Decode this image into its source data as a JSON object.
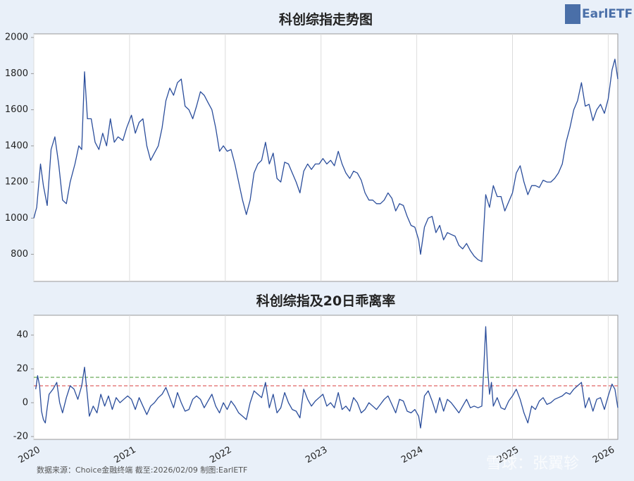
{
  "logo": "EarlETF",
  "footer": "数据来源：Choice金融终端 截至:2026/02/09 制图:EarlETF",
  "watermark": "雪球：张翼轸",
  "chart_data": [
    {
      "type": "line",
      "title": "科创综指走势图",
      "color": "#2a4d9b",
      "grid": "x",
      "xtick_labels": false,
      "xlim": [
        2020,
        2026.1
      ],
      "xticks": [
        2020,
        2021,
        2022,
        2023,
        2024,
        2025,
        2026
      ],
      "ylim": [
        650,
        2020
      ],
      "yticks": [
        800,
        1000,
        1200,
        1400,
        1600,
        1800,
        2000
      ],
      "x": [
        2020,
        2020.03,
        2020.07,
        2020.1,
        2020.14,
        2020.18,
        2020.22,
        2020.26,
        2020.3,
        2020.34,
        2020.38,
        2020.43,
        2020.47,
        2020.5,
        2020.53,
        2020.56,
        2020.6,
        2020.64,
        2020.68,
        2020.72,
        2020.76,
        2020.8,
        2020.84,
        2020.88,
        2020.93,
        2020.97,
        2021.02,
        2021.06,
        2021.1,
        2021.14,
        2021.18,
        2021.22,
        2021.26,
        2021.3,
        2021.34,
        2021.38,
        2021.42,
        2021.46,
        2021.5,
        2021.54,
        2021.58,
        2021.62,
        2021.66,
        2021.7,
        2021.74,
        2021.78,
        2021.82,
        2021.86,
        2021.9,
        2021.94,
        2021.98,
        2022.02,
        2022.06,
        2022.1,
        2022.14,
        2022.18,
        2022.22,
        2022.26,
        2022.3,
        2022.34,
        2022.38,
        2022.42,
        2022.46,
        2022.5,
        2022.54,
        2022.58,
        2022.62,
        2022.66,
        2022.7,
        2022.74,
        2022.78,
        2022.82,
        2022.86,
        2022.9,
        2022.94,
        2022.98,
        2023.02,
        2023.06,
        2023.1,
        2023.14,
        2023.18,
        2023.22,
        2023.26,
        2023.3,
        2023.34,
        2023.38,
        2023.42,
        2023.46,
        2023.5,
        2023.54,
        2023.58,
        2023.62,
        2023.66,
        2023.7,
        2023.74,
        2023.78,
        2023.82,
        2023.86,
        2023.9,
        2023.94,
        2023.98,
        2024.02,
        2024.04,
        2024.08,
        2024.12,
        2024.16,
        2024.2,
        2024.24,
        2024.28,
        2024.32,
        2024.36,
        2024.4,
        2024.44,
        2024.48,
        2024.52,
        2024.56,
        2024.6,
        2024.64,
        2024.68,
        2024.72,
        2024.76,
        2024.8,
        2024.84,
        2024.88,
        2024.92,
        2024.96,
        2025,
        2025.04,
        2025.08,
        2025.12,
        2025.16,
        2025.2,
        2025.24,
        2025.28,
        2025.32,
        2025.36,
        2025.4,
        2025.44,
        2025.48,
        2025.52,
        2025.56,
        2025.6,
        2025.64,
        2025.68,
        2025.72,
        2025.76,
        2025.8,
        2025.84,
        2025.88,
        2025.92,
        2025.96,
        2026,
        2026.04,
        2026.07,
        2026.1
      ],
      "values": [
        1000,
        1060,
        1300,
        1180,
        1070,
        1380,
        1450,
        1300,
        1100,
        1080,
        1200,
        1300,
        1400,
        1380,
        1810,
        1550,
        1550,
        1420,
        1380,
        1470,
        1400,
        1550,
        1420,
        1450,
        1430,
        1500,
        1570,
        1470,
        1530,
        1550,
        1400,
        1320,
        1360,
        1400,
        1500,
        1650,
        1720,
        1680,
        1750,
        1770,
        1620,
        1600,
        1550,
        1620,
        1700,
        1680,
        1640,
        1600,
        1500,
        1370,
        1400,
        1370,
        1380,
        1300,
        1200,
        1100,
        1020,
        1100,
        1250,
        1300,
        1320,
        1420,
        1300,
        1360,
        1220,
        1200,
        1310,
        1300,
        1250,
        1200,
        1140,
        1260,
        1300,
        1270,
        1300,
        1300,
        1330,
        1300,
        1320,
        1290,
        1370,
        1300,
        1250,
        1220,
        1260,
        1250,
        1210,
        1140,
        1100,
        1100,
        1080,
        1080,
        1100,
        1140,
        1110,
        1040,
        1080,
        1070,
        1010,
        960,
        950,
        880,
        800,
        950,
        1000,
        1010,
        920,
        960,
        880,
        920,
        910,
        900,
        850,
        830,
        860,
        820,
        790,
        770,
        760,
        1130,
        1060,
        1180,
        1120,
        1120,
        1040,
        1090,
        1140,
        1250,
        1290,
        1200,
        1130,
        1180,
        1180,
        1170,
        1210,
        1200,
        1200,
        1220,
        1250,
        1300,
        1420,
        1500,
        1600,
        1650,
        1750,
        1620,
        1630,
        1540,
        1600,
        1630,
        1580,
        1660,
        1820,
        1880,
        1770
      ]
    },
    {
      "type": "line",
      "title": "科创综指及20日乖离率",
      "color": "#2a4d9b",
      "grid": "x",
      "xtick_labels": true,
      "xlim": [
        2020,
        2026.1
      ],
      "xticks": [
        2020,
        2021,
        2022,
        2023,
        2024,
        2025,
        2026
      ],
      "ylim": [
        -21.7,
        51.7
      ],
      "yticks": [
        -20,
        0,
        20,
        40
      ],
      "hlines": [
        {
          "value": 15,
          "color": "#6aaa5a"
        },
        {
          "value": 10,
          "color": "#e06666"
        }
      ],
      "x": [
        2020.02,
        2020.04,
        2020.06,
        2020.08,
        2020.1,
        2020.12,
        2020.14,
        2020.16,
        2020.2,
        2020.24,
        2020.27,
        2020.3,
        2020.34,
        2020.38,
        2020.42,
        2020.46,
        2020.5,
        2020.53,
        2020.56,
        2020.58,
        2020.62,
        2020.66,
        2020.7,
        2020.74,
        2020.78,
        2020.82,
        2020.86,
        2020.9,
        2020.94,
        2020.98,
        2021.02,
        2021.06,
        2021.1,
        2021.14,
        2021.18,
        2021.22,
        2021.26,
        2021.3,
        2021.34,
        2021.38,
        2021.42,
        2021.46,
        2021.5,
        2021.54,
        2021.58,
        2021.62,
        2021.66,
        2021.7,
        2021.74,
        2021.78,
        2021.82,
        2021.86,
        2021.9,
        2021.94,
        2021.98,
        2022.02,
        2022.06,
        2022.1,
        2022.14,
        2022.18,
        2022.22,
        2022.26,
        2022.3,
        2022.34,
        2022.38,
        2022.42,
        2022.46,
        2022.5,
        2022.54,
        2022.58,
        2022.62,
        2022.66,
        2022.7,
        2022.74,
        2022.78,
        2022.82,
        2022.86,
        2022.9,
        2022.94,
        2022.98,
        2023.02,
        2023.06,
        2023.1,
        2023.14,
        2023.18,
        2023.22,
        2023.26,
        2023.3,
        2023.34,
        2023.38,
        2023.42,
        2023.46,
        2023.5,
        2023.54,
        2023.58,
        2023.62,
        2023.66,
        2023.7,
        2023.74,
        2023.78,
        2023.82,
        2023.86,
        2023.9,
        2023.94,
        2023.98,
        2024.02,
        2024.04,
        2024.08,
        2024.12,
        2024.16,
        2024.2,
        2024.24,
        2024.28,
        2024.32,
        2024.36,
        2024.4,
        2024.44,
        2024.48,
        2024.52,
        2024.56,
        2024.6,
        2024.64,
        2024.68,
        2024.7,
        2024.72,
        2024.74,
        2024.76,
        2024.78,
        2024.8,
        2024.84,
        2024.88,
        2024.92,
        2024.96,
        2025,
        2025.04,
        2025.08,
        2025.12,
        2025.16,
        2025.2,
        2025.24,
        2025.28,
        2025.32,
        2025.36,
        2025.4,
        2025.44,
        2025.48,
        2025.52,
        2025.56,
        2025.6,
        2025.64,
        2025.68,
        2025.72,
        2025.76,
        2025.8,
        2025.84,
        2025.88,
        2025.92,
        2025.96,
        2026,
        2026.04,
        2026.07,
        2026.1
      ],
      "values": [
        8,
        16,
        10,
        -5,
        -10,
        -12,
        -3,
        5,
        8,
        12,
        0,
        -6,
        3,
        10,
        8,
        2,
        10,
        21,
        4,
        -8,
        -2,
        -6,
        5,
        -2,
        4,
        -4,
        3,
        0,
        2,
        4,
        2,
        -4,
        3,
        -2,
        -7,
        -2,
        0,
        3,
        5,
        9,
        3,
        -3,
        6,
        0,
        -5,
        -4,
        2,
        4,
        2,
        -3,
        1,
        5,
        -2,
        -6,
        0,
        -4,
        1,
        -2,
        -6,
        -8,
        -10,
        0,
        7,
        5,
        3,
        12,
        -3,
        5,
        -6,
        -3,
        6,
        0,
        -4,
        -5,
        -9,
        8,
        2,
        -2,
        1,
        3,
        5,
        -2,
        0,
        -3,
        6,
        -4,
        -2,
        -5,
        3,
        0,
        -6,
        -4,
        0,
        -2,
        -4,
        -1,
        2,
        4,
        -1,
        -6,
        2,
        1,
        -5,
        -6,
        -4,
        -8,
        -15,
        4,
        7,
        1,
        -6,
        3,
        -5,
        2,
        0,
        -3,
        -6,
        -2,
        2,
        -3,
        -2,
        -3,
        -2,
        20,
        45,
        20,
        5,
        12,
        -2,
        3,
        -3,
        -4,
        1,
        4,
        8,
        2,
        -6,
        -12,
        -2,
        -4,
        1,
        3,
        -1,
        0,
        2,
        3,
        4,
        6,
        5,
        8,
        10,
        12,
        -3,
        3,
        -5,
        2,
        3,
        -4,
        4,
        11,
        8,
        -3
      ]
    }
  ]
}
